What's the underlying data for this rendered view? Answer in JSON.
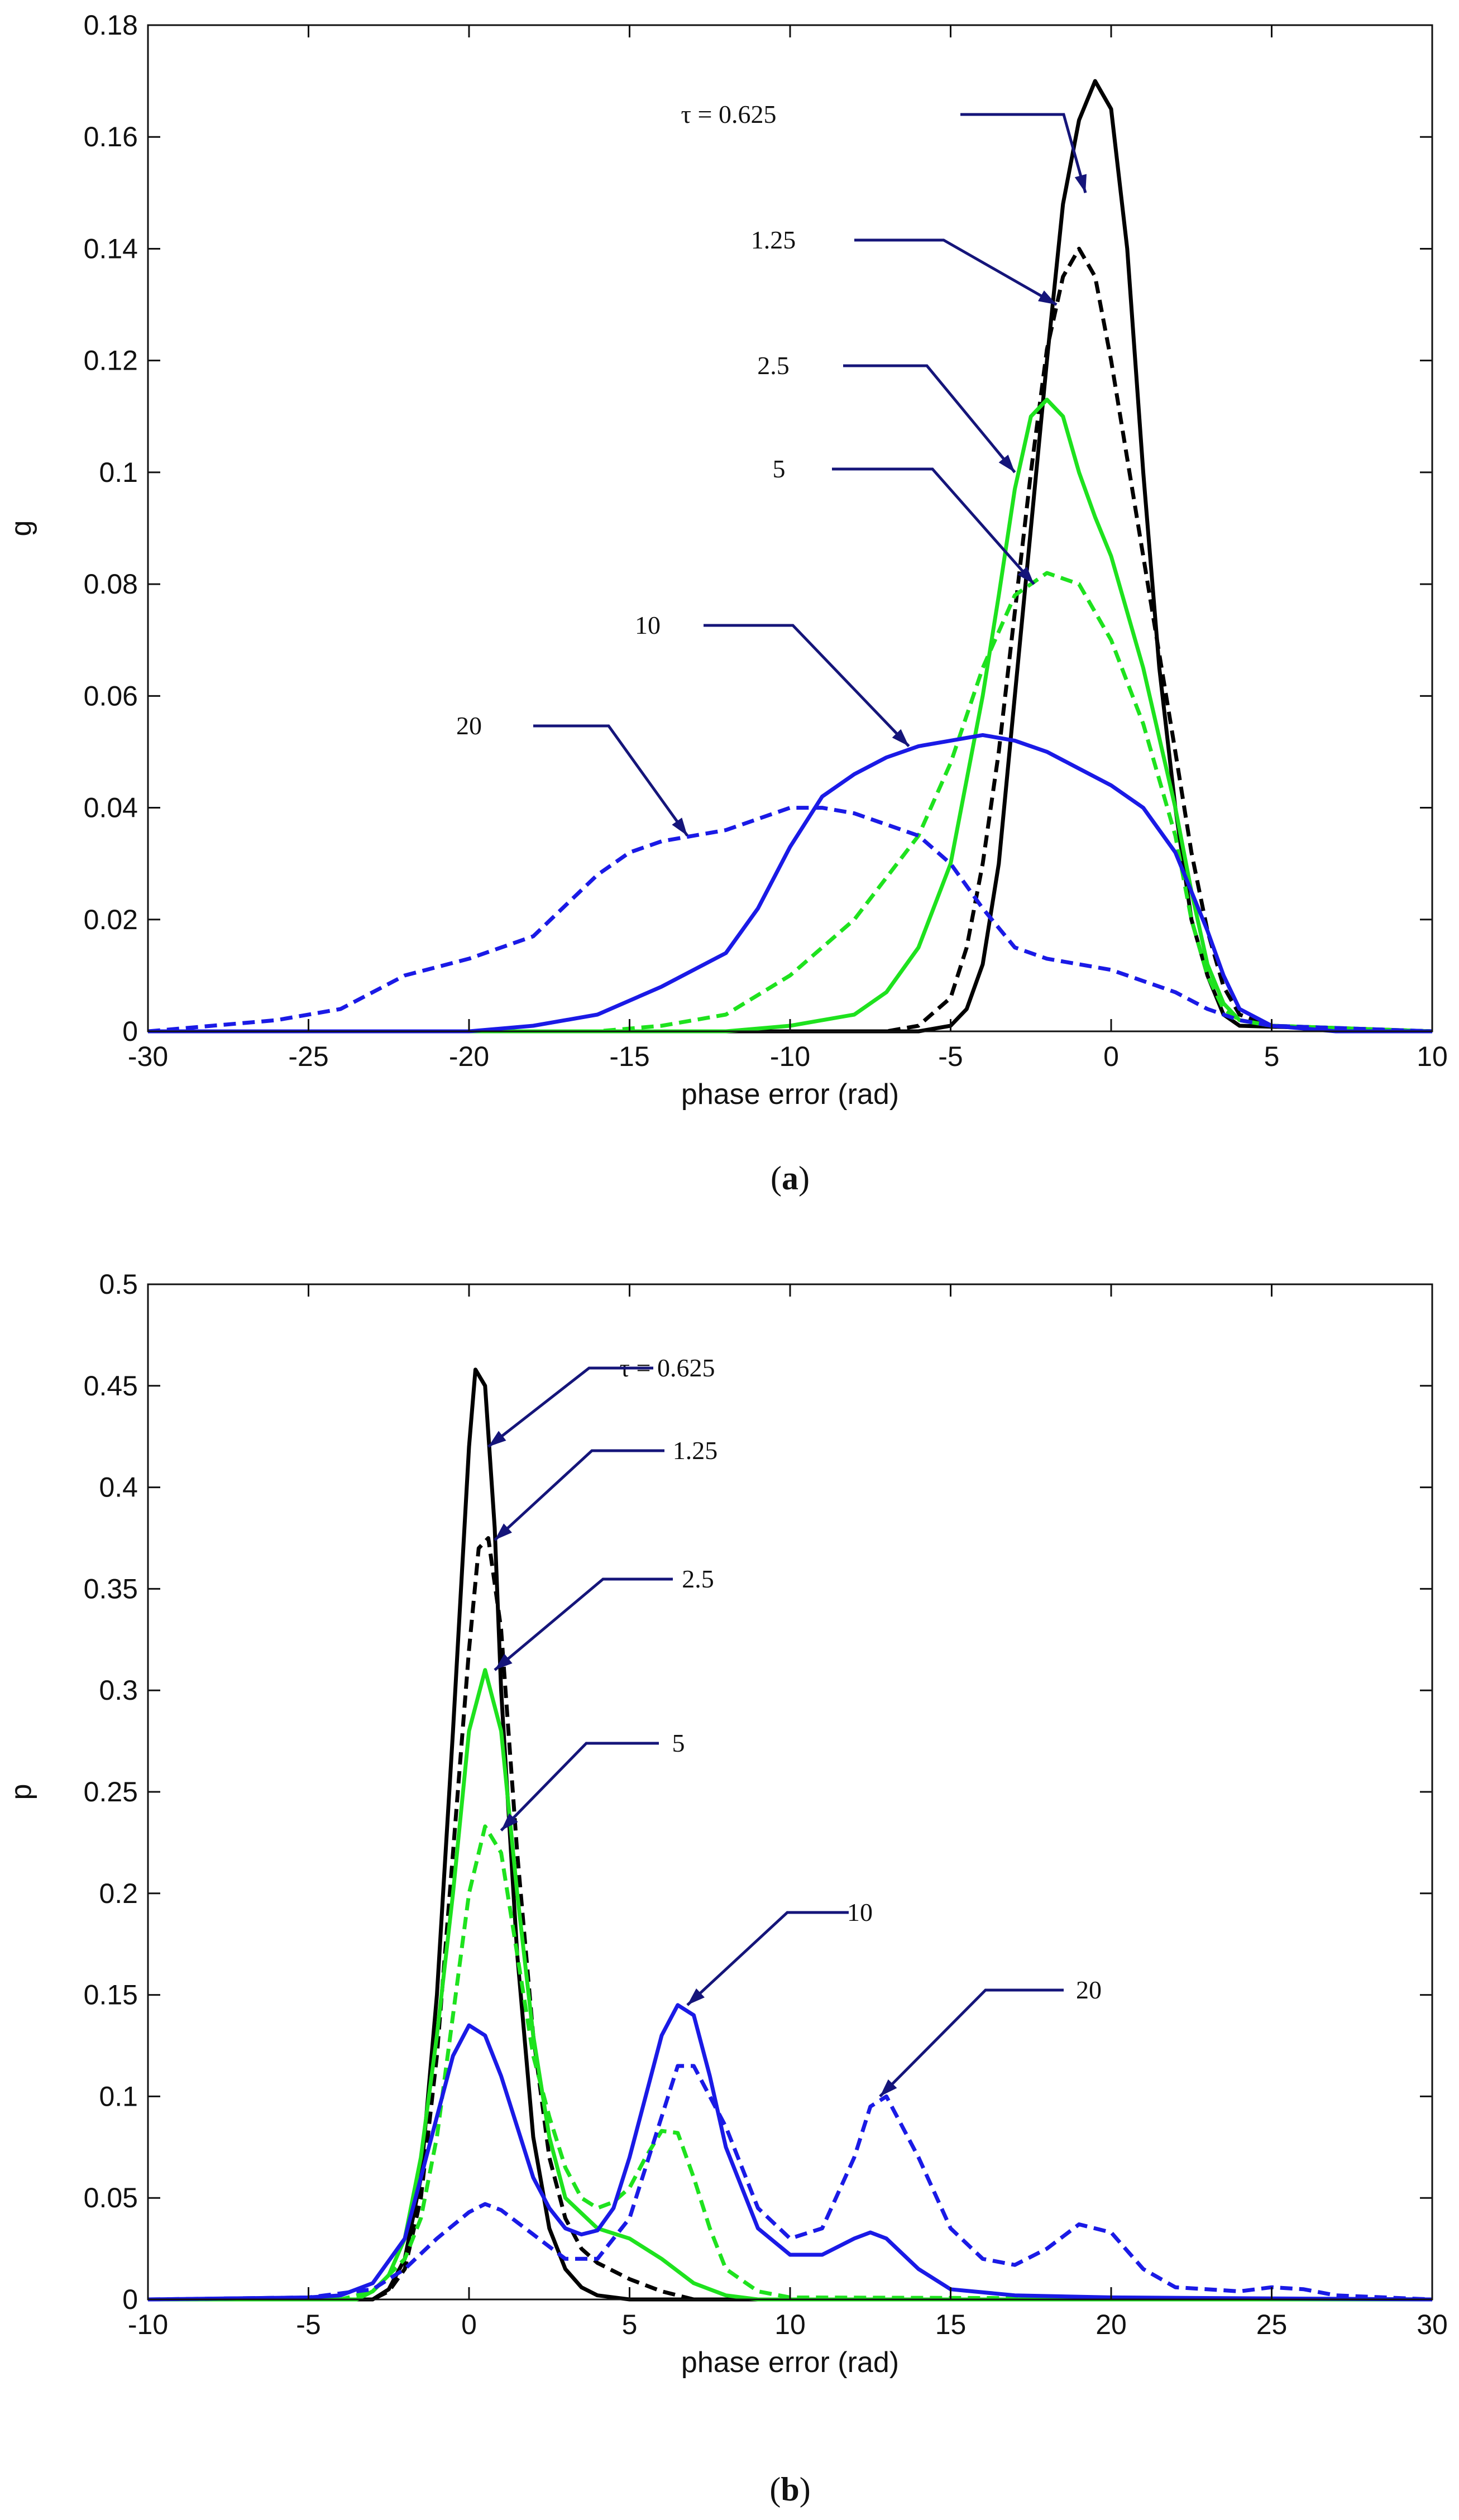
{
  "chart_data": [
    {
      "type": "line",
      "id": "a",
      "panel_label": {
        "open": "(",
        "letter": "a",
        "close": ")"
      },
      "xlabel": "phase error (rad)",
      "ylabel": "g",
      "xlim": [
        -30,
        10
      ],
      "ylim": [
        0,
        0.18
      ],
      "xticks": [
        -30,
        -25,
        -20,
        -15,
        -10,
        -5,
        0,
        5,
        10
      ],
      "yticks": [
        0,
        0.02,
        0.04,
        0.06,
        0.08,
        0.1,
        0.12,
        0.14,
        0.16,
        0.18
      ],
      "grid": false,
      "series": [
        {
          "name": "τ = 0.625",
          "color": "#000000",
          "dash": "solid",
          "x": [
            -30,
            -6,
            -5,
            -4.5,
            -4,
            -3.5,
            -3,
            -2.5,
            -2,
            -1.5,
            -1,
            -0.5,
            0,
            0.5,
            1,
            1.5,
            2,
            2.5,
            3,
            3.5,
            4,
            10
          ],
          "y": [
            0,
            0,
            0.001,
            0.004,
            0.012,
            0.03,
            0.06,
            0.09,
            0.12,
            0.148,
            0.163,
            0.17,
            0.165,
            0.14,
            0.1,
            0.065,
            0.04,
            0.02,
            0.01,
            0.003,
            0.001,
            0
          ]
        },
        {
          "name": "1.25",
          "color": "#000000",
          "dash": "dashed",
          "x": [
            -30,
            -7,
            -6,
            -5,
            -4.5,
            -4,
            -3.5,
            -3,
            -2.5,
            -2,
            -1.5,
            -1,
            -0.5,
            0,
            1,
            2,
            2.5,
            3,
            3.5,
            4,
            5,
            10
          ],
          "y": [
            0,
            0,
            0.001,
            0.006,
            0.015,
            0.03,
            0.05,
            0.075,
            0.1,
            0.122,
            0.135,
            0.14,
            0.135,
            0.12,
            0.085,
            0.05,
            0.032,
            0.018,
            0.008,
            0.003,
            0.001,
            0
          ]
        },
        {
          "name": "2.5",
          "color": "#1ee21e",
          "dash": "solid",
          "x": [
            -30,
            -12,
            -10,
            -8,
            -7,
            -6,
            -5,
            -4,
            -3.5,
            -3,
            -2.5,
            -2,
            -1.5,
            -1,
            -0.5,
            0,
            1,
            2,
            2.5,
            3,
            3.5,
            4,
            5,
            10
          ],
          "y": [
            0,
            0,
            0.001,
            0.003,
            0.007,
            0.015,
            0.03,
            0.06,
            0.078,
            0.097,
            0.11,
            0.113,
            0.11,
            0.1,
            0.092,
            0.085,
            0.065,
            0.04,
            0.025,
            0.012,
            0.005,
            0.002,
            0.001,
            0
          ]
        },
        {
          "name": "5",
          "color": "#1ee21e",
          "dash": "dashed",
          "x": [
            -30,
            -16,
            -14,
            -12,
            -10,
            -8,
            -6,
            -5,
            -4,
            -3,
            -2,
            -1,
            0,
            1,
            2,
            2.5,
            3,
            3.5,
            4,
            5,
            10
          ],
          "y": [
            0,
            0,
            0.001,
            0.003,
            0.01,
            0.02,
            0.035,
            0.048,
            0.065,
            0.078,
            0.082,
            0.08,
            0.07,
            0.055,
            0.035,
            0.02,
            0.01,
            0.004,
            0.002,
            0.001,
            0
          ]
        },
        {
          "name": "10",
          "color": "#1a1ae6",
          "dash": "solid",
          "x": [
            -30,
            -20,
            -18,
            -16,
            -14,
            -12,
            -11,
            -10,
            -9,
            -8,
            -7,
            -6,
            -5,
            -4,
            -3,
            -2,
            -1,
            0,
            1,
            2,
            2.5,
            3,
            3.5,
            4,
            5,
            7,
            10
          ],
          "y": [
            0,
            0,
            0.001,
            0.003,
            0.008,
            0.014,
            0.022,
            0.033,
            0.042,
            0.046,
            0.049,
            0.051,
            0.052,
            0.053,
            0.052,
            0.05,
            0.047,
            0.044,
            0.04,
            0.032,
            0.025,
            0.018,
            0.01,
            0.004,
            0.001,
            0,
            0
          ]
        },
        {
          "name": "20",
          "color": "#1a1ae6",
          "dash": "dashed",
          "x": [
            -30,
            -28,
            -26,
            -24,
            -22,
            -20,
            -18,
            -16,
            -15,
            -14,
            -13,
            -12,
            -11,
            -10,
            -9,
            -8,
            -7,
            -6,
            -5,
            -4,
            -3,
            -2,
            -1,
            0,
            1,
            2,
            3,
            3.5,
            4,
            5,
            10
          ],
          "y": [
            0,
            0.001,
            0.002,
            0.004,
            0.01,
            0.013,
            0.017,
            0.028,
            0.032,
            0.034,
            0.035,
            0.036,
            0.038,
            0.04,
            0.04,
            0.039,
            0.037,
            0.035,
            0.03,
            0.022,
            0.015,
            0.013,
            0.012,
            0.011,
            0.009,
            0.007,
            0.004,
            0.003,
            0.002,
            0.001,
            0
          ]
        }
      ],
      "annotations": [
        {
          "text": "τ = 0.625",
          "series": "τ = 0.625",
          "point": [
            -0.8,
            0.15
          ]
        },
        {
          "text": "1.25",
          "series": "1.25",
          "point": [
            -1.7,
            0.13
          ]
        },
        {
          "text": "2.5",
          "series": "2.5",
          "point": [
            -3.0,
            0.1
          ]
        },
        {
          "text": "5",
          "series": "5",
          "point": [
            -2.4,
            0.08
          ]
        },
        {
          "text": "10",
          "series": "10",
          "point": [
            -6.3,
            0.051
          ]
        },
        {
          "text": "20",
          "series": "20",
          "point": [
            -13.2,
            0.035
          ]
        }
      ]
    },
    {
      "type": "line",
      "id": "b",
      "panel_label": {
        "open": "(",
        "letter": "b",
        "close": ")"
      },
      "xlabel": "phase error (rad)",
      "ylabel": "p",
      "xlim": [
        -10,
        30
      ],
      "ylim": [
        0,
        0.5
      ],
      "xticks": [
        -10,
        -5,
        0,
        5,
        10,
        15,
        20,
        25,
        30
      ],
      "yticks": [
        0,
        0.05,
        0.1,
        0.15,
        0.2,
        0.25,
        0.3,
        0.35,
        0.4,
        0.45,
        0.5
      ],
      "grid": false,
      "series": [
        {
          "name": "τ = 0.625",
          "color": "#000000",
          "dash": "solid",
          "x": [
            -10,
            -3,
            -2.5,
            -2,
            -1.5,
            -1,
            -0.5,
            0,
            0.2,
            0.5,
            0.8,
            1,
            1.5,
            2,
            2.5,
            3,
            3.5,
            4,
            5,
            30
          ],
          "y": [
            0,
            0,
            0.005,
            0.02,
            0.06,
            0.15,
            0.28,
            0.42,
            0.458,
            0.45,
            0.38,
            0.3,
            0.17,
            0.08,
            0.035,
            0.015,
            0.006,
            0.002,
            0,
            0
          ]
        },
        {
          "name": "1.25",
          "color": "#000000",
          "dash": "dashed",
          "x": [
            -10,
            -3,
            -2.5,
            -2,
            -1.5,
            -1,
            -0.5,
            0,
            0.3,
            0.6,
            1,
            1.5,
            2,
            2.5,
            3,
            3.5,
            4,
            5,
            6,
            7,
            30
          ],
          "y": [
            0,
            0,
            0.004,
            0.015,
            0.05,
            0.12,
            0.22,
            0.32,
            0.37,
            0.375,
            0.33,
            0.22,
            0.13,
            0.07,
            0.04,
            0.025,
            0.018,
            0.01,
            0.004,
            0,
            0
          ]
        },
        {
          "name": "2.5",
          "color": "#1ee21e",
          "dash": "solid",
          "x": [
            -10,
            -3.5,
            -3,
            -2.5,
            -2,
            -1.5,
            -1,
            -0.5,
            0,
            0.5,
            1,
            1.5,
            2,
            2.5,
            3,
            4,
            5,
            6,
            7,
            8,
            9,
            30
          ],
          "y": [
            0,
            0,
            0.004,
            0.012,
            0.03,
            0.07,
            0.13,
            0.2,
            0.28,
            0.31,
            0.28,
            0.2,
            0.13,
            0.08,
            0.05,
            0.035,
            0.03,
            0.02,
            0.008,
            0.002,
            0,
            0
          ]
        },
        {
          "name": "5",
          "color": "#1ee21e",
          "dash": "dashed",
          "x": [
            -10,
            -4,
            -3,
            -2,
            -1.5,
            -1,
            -0.5,
            0,
            0.5,
            1,
            1.5,
            2,
            2.5,
            3,
            3.5,
            4,
            4.5,
            5,
            5.5,
            6,
            6.5,
            7,
            7.5,
            8,
            9,
            10,
            30
          ],
          "y": [
            0,
            0,
            0.004,
            0.02,
            0.04,
            0.08,
            0.14,
            0.2,
            0.233,
            0.22,
            0.17,
            0.12,
            0.09,
            0.065,
            0.05,
            0.045,
            0.048,
            0.055,
            0.07,
            0.083,
            0.082,
            0.06,
            0.035,
            0.015,
            0.004,
            0.001,
            0
          ]
        },
        {
          "name": "10",
          "color": "#1a1ae6",
          "dash": "solid",
          "x": [
            -10,
            -5,
            -4,
            -3,
            -2,
            -1.5,
            -1,
            -0.5,
            0,
            0.5,
            1,
            1.5,
            2,
            2.5,
            3,
            3.5,
            4,
            4.5,
            5,
            5.5,
            6,
            6.5,
            7,
            7.5,
            8,
            9,
            10,
            11,
            12,
            12.5,
            13,
            14,
            15,
            17,
            20,
            30
          ],
          "y": [
            0,
            0.001,
            0.002,
            0.008,
            0.03,
            0.06,
            0.09,
            0.12,
            0.135,
            0.13,
            0.11,
            0.085,
            0.06,
            0.045,
            0.035,
            0.032,
            0.034,
            0.045,
            0.07,
            0.1,
            0.13,
            0.145,
            0.14,
            0.11,
            0.075,
            0.035,
            0.022,
            0.022,
            0.03,
            0.033,
            0.03,
            0.015,
            0.005,
            0.002,
            0.001,
            0
          ]
        },
        {
          "name": "20",
          "color": "#1a1ae6",
          "dash": "dashed",
          "x": [
            -10,
            -5,
            -3,
            -2,
            -1,
            0,
            0.5,
            1,
            2,
            3,
            4,
            5,
            6,
            6.5,
            7,
            8,
            9,
            10,
            11,
            12,
            12.5,
            13,
            14,
            15,
            16,
            17,
            18,
            19,
            20,
            21,
            22,
            24,
            25,
            26,
            27,
            30
          ],
          "y": [
            0,
            0.001,
            0.005,
            0.015,
            0.03,
            0.043,
            0.047,
            0.044,
            0.032,
            0.02,
            0.02,
            0.04,
            0.09,
            0.115,
            0.115,
            0.085,
            0.045,
            0.03,
            0.035,
            0.07,
            0.095,
            0.1,
            0.07,
            0.035,
            0.02,
            0.017,
            0.025,
            0.037,
            0.033,
            0.015,
            0.006,
            0.004,
            0.006,
            0.005,
            0.002,
            0
          ]
        }
      ],
      "annotations": [
        {
          "text": "τ = 0.625",
          "series": "τ = 0.625",
          "point": [
            0.6,
            0.42
          ]
        },
        {
          "text": "1.25",
          "series": "1.25",
          "point": [
            0.8,
            0.374
          ]
        },
        {
          "text": "2.5",
          "series": "2.5",
          "point": [
            0.8,
            0.31
          ]
        },
        {
          "text": "5",
          "series": "5",
          "point": [
            1.0,
            0.231
          ]
        },
        {
          "text": "10",
          "series": "10",
          "point": [
            6.8,
            0.145
          ]
        },
        {
          "text": "20",
          "series": "20",
          "point": [
            12.8,
            0.1
          ]
        }
      ]
    }
  ]
}
